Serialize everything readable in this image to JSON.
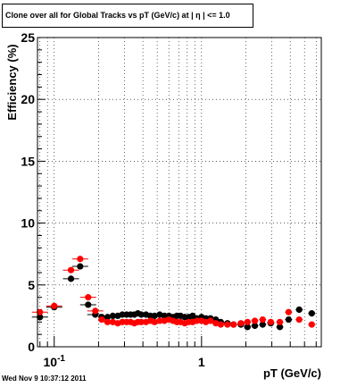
{
  "footer_text": "Wed Nov  9 10:37:12 2011",
  "colors": {
    "series_black": "#000000",
    "series_red": "#ff0000",
    "frame": "#000000",
    "grid": "#000000"
  },
  "chart_data": {
    "type": "scatter",
    "title": "Clone  over all for Global Tracks vs pT (GeV/c) at |  η | <= 1.0",
    "xlabel": "pT (GeV/c)",
    "ylabel": "Efficiency (%)",
    "x_scale": "log",
    "xlim": [
      0.077,
      6.5
    ],
    "ylim": [
      0,
      25
    ],
    "y_ticks": [
      0,
      5,
      10,
      15,
      20,
      25
    ],
    "x_tick_labels": [
      {
        "value": 0.1,
        "base": "10",
        "exp": "-1"
      },
      {
        "value": 1,
        "base": "1",
        "exp": ""
      }
    ],
    "grid": true,
    "series": [
      {
        "color": "#000000",
        "x": [
          0.08,
          0.1,
          0.13,
          0.15,
          0.17,
          0.19,
          0.21,
          0.23,
          0.25,
          0.27,
          0.29,
          0.31,
          0.33,
          0.35,
          0.37,
          0.39,
          0.42,
          0.45,
          0.48,
          0.52,
          0.56,
          0.6,
          0.64,
          0.68,
          0.72,
          0.77,
          0.82,
          0.87,
          0.93,
          1.0,
          1.07,
          1.15,
          1.25,
          1.35,
          1.5,
          1.65,
          1.85,
          2.05,
          2.3,
          2.6,
          2.95,
          3.4,
          3.9,
          4.6,
          5.6
        ],
        "y": [
          2.4,
          3.2,
          5.5,
          6.5,
          3.4,
          2.6,
          2.4,
          2.4,
          2.5,
          2.5,
          2.6,
          2.6,
          2.6,
          2.6,
          2.7,
          2.6,
          2.6,
          2.5,
          2.5,
          2.6,
          2.5,
          2.5,
          2.4,
          2.5,
          2.5,
          2.4,
          2.4,
          2.5,
          2.3,
          2.4,
          2.3,
          2.3,
          2.2,
          2.0,
          1.9,
          1.8,
          1.8,
          1.6,
          1.7,
          1.8,
          1.9,
          1.6,
          2.2,
          3.0,
          2.7
        ]
      },
      {
        "color": "#ff0000",
        "x": [
          0.08,
          0.1,
          0.13,
          0.15,
          0.17,
          0.19,
          0.21,
          0.23,
          0.25,
          0.27,
          0.29,
          0.31,
          0.33,
          0.35,
          0.37,
          0.39,
          0.42,
          0.45,
          0.48,
          0.52,
          0.56,
          0.6,
          0.64,
          0.68,
          0.72,
          0.77,
          0.82,
          0.87,
          0.93,
          1.0,
          1.07,
          1.15,
          1.25,
          1.35,
          1.5,
          1.65,
          1.85,
          2.05,
          2.3,
          2.6,
          2.95,
          3.4,
          3.9,
          4.6,
          5.6
        ],
        "y": [
          2.8,
          3.3,
          6.2,
          7.1,
          4.0,
          2.9,
          2.2,
          2.0,
          2.0,
          1.9,
          2.0,
          2.0,
          2.0,
          1.9,
          2.0,
          2.0,
          2.0,
          2.1,
          2.0,
          2.1,
          2.1,
          2.2,
          2.1,
          2.0,
          2.0,
          1.9,
          2.0,
          2.0,
          2.1,
          2.1,
          2.0,
          2.1,
          1.9,
          1.8,
          1.8,
          1.8,
          1.9,
          2.0,
          2.1,
          2.2,
          2.0,
          2.0,
          2.8,
          2.2,
          1.8
        ]
      }
    ]
  }
}
